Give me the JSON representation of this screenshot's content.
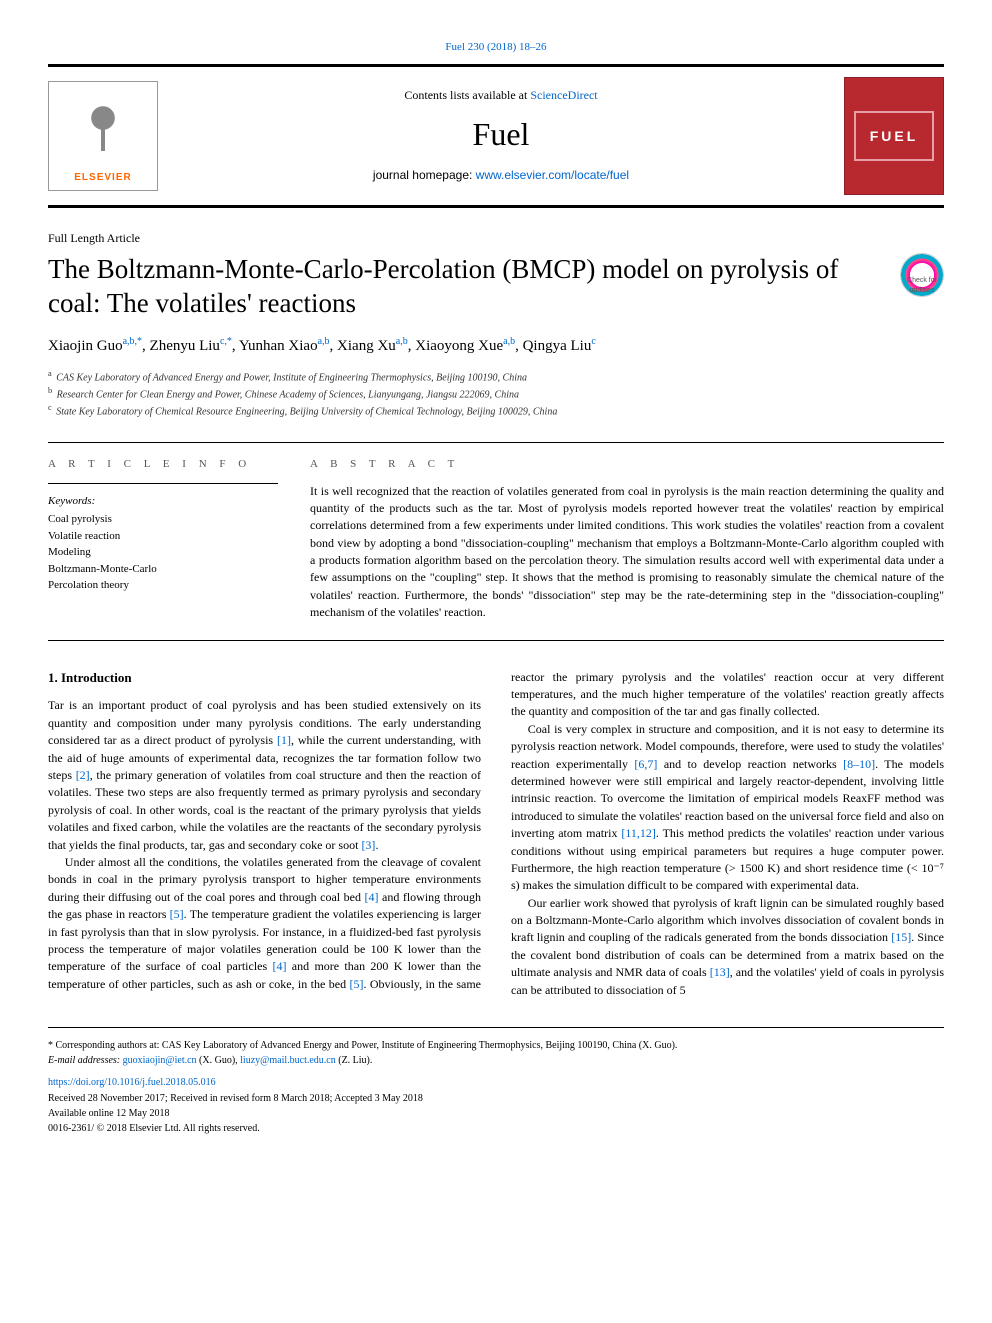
{
  "top_citation": "Fuel 230 (2018) 18–26",
  "header": {
    "contents_prefix": "Contents lists available at ",
    "contents_link": "ScienceDirect",
    "journal_name": "Fuel",
    "homepage_prefix": "journal homepage: ",
    "homepage_url": "www.elsevier.com/locate/fuel",
    "elsevier_brand": "ELSEVIER",
    "cover_text": "FUEL"
  },
  "article_type": "Full Length Article",
  "title": "The Boltzmann-Monte-Carlo-Percolation (BMCP) model on pyrolysis of coal: The volatiles' reactions",
  "check_updates_label": "Check for updates",
  "authors_html": "Xiaojin Guo<sup>a,b,*</sup>, Zhenyu Liu<sup>c,*</sup>, Yunhan Xiao<sup>a,b</sup>, Xiang Xu<sup>a,b</sup>, Xiaoyong Xue<sup>a,b</sup>, Qingya Liu<sup>c</sup>",
  "affiliations": [
    {
      "key": "a",
      "text": "CAS Key Laboratory of Advanced Energy and Power, Institute of Engineering Thermophysics, Beijing 100190, China"
    },
    {
      "key": "b",
      "text": "Research Center for Clean Energy and Power, Chinese Academy of Sciences, Lianyungang, Jiangsu 222069, China"
    },
    {
      "key": "c",
      "text": "State Key Laboratory of Chemical Resource Engineering, Beijing University of Chemical Technology, Beijing 100029, China"
    }
  ],
  "info": {
    "label": "A R T I C L E  I N F O",
    "keywords_head": "Keywords:",
    "keywords": [
      "Coal pyrolysis",
      "Volatile reaction",
      "Modeling",
      "Boltzmann-Monte-Carlo",
      "Percolation theory"
    ]
  },
  "abstract": {
    "label": "A B S T R A C T",
    "text": "It is well recognized that the reaction of volatiles generated from coal in pyrolysis is the main reaction determining the quality and quantity of the products such as the tar. Most of pyrolysis models reported however treat the volatiles' reaction by empirical correlations determined from a few experiments under limited conditions. This work studies the volatiles' reaction from a covalent bond view by adopting a bond \"dissociation-coupling\" mechanism that employs a Boltzmann-Monte-Carlo algorithm coupled with a products formation algorithm based on the percolation theory. The simulation results accord well with experimental data under a few assumptions on the \"coupling\" step. It shows that the method is promising to reasonably simulate the chemical nature of the volatiles' reaction. Furthermore, the bonds' \"dissociation\" step may be the rate-determining step in the \"dissociation-coupling\" mechanism of the volatiles' reaction."
  },
  "section1_heading": "1. Introduction",
  "paragraphs": [
    "Tar is an important product of coal pyrolysis and has been studied extensively on its quantity and composition under many pyrolysis conditions. The early understanding considered tar as a direct product of pyrolysis [1], while the current understanding, with the aid of huge amounts of experimental data, recognizes the tar formation follow two steps [2], the primary generation of volatiles from coal structure and then the reaction of volatiles. These two steps are also frequently termed as primary pyrolysis and secondary pyrolysis of coal. In other words, coal is the reactant of the primary pyrolysis that yields volatiles and fixed carbon, while the volatiles are the reactants of the secondary pyrolysis that yields the final products, tar, gas and secondary coke or soot [3].",
    "Under almost all the conditions, the volatiles generated from the cleavage of covalent bonds in coal in the primary pyrolysis transport to higher temperature environments during their diffusing out of the coal pores and through coal bed [4] and flowing through the gas phase in reactors [5]. The temperature gradient the volatiles experiencing is larger in fast pyrolysis than that in slow pyrolysis. For instance, in a fluidized-bed fast pyrolysis process the temperature of major volatiles generation could be 100 K lower than the temperature of the surface of coal particles [4] and more than 200 K lower than the temperature of other particles, such as ash or coke, in the bed [5]. Obviously, in the same reactor the primary pyrolysis and the volatiles' reaction occur at very different temperatures, and the much higher temperature of the volatiles' reaction greatly affects the quantity and composition of the tar and gas finally collected.",
    "Coal is very complex in structure and composition, and it is not easy to determine its pyrolysis reaction network. Model compounds, therefore, were used to study the volatiles' reaction experimentally [6,7] and to develop reaction networks [8–10]. The models determined however were still empirical and largely reactor-dependent, involving little intrinsic reaction. To overcome the limitation of empirical models ReaxFF method was introduced to simulate the volatiles' reaction based on the universal force field and also on inverting atom matrix [11,12]. This method predicts the volatiles' reaction under various conditions without using empirical parameters but requires a huge computer power. Furthermore, the high reaction temperature (> 1500 K) and short residence time (< 10⁻⁷ s) makes the simulation difficult to be compared with experimental data.",
    "Our earlier work showed that pyrolysis of kraft lignin can be simulated roughly based on a Boltzmann-Monte-Carlo algorithm which involves dissociation of covalent bonds in kraft lignin and coupling of the radicals generated from the bonds dissociation [15]. Since the covalent bond distribution of coals can be determined from a matrix based on the ultimate analysis and NMR data of coals [13], and the volatiles' yield of coals in pyrolysis can be attributed to dissociation of 5"
  ],
  "footnote": {
    "corresponding": "* Corresponding authors at: CAS Key Laboratory of Advanced Energy and Power, Institute of Engineering Thermophysics, Beijing 100190, China (X. Guo).",
    "email_label": "E-mail addresses: ",
    "email1": "guoxiaojin@iet.cn",
    "email1_who": " (X. Guo), ",
    "email2": "liuzy@mail.buct.edu.cn",
    "email2_who": " (Z. Liu)."
  },
  "doi": "https://doi.org/10.1016/j.fuel.2018.05.016",
  "history": [
    "Received 28 November 2017; Received in revised form 8 March 2018; Accepted 3 May 2018",
    "Available online 12 May 2018",
    "0016-2361/ © 2018 Elsevier Ltd. All rights reserved."
  ],
  "refs": [
    "[1]",
    "[2]",
    "[3]",
    "[4]",
    "[5]",
    "[6,7]",
    "[8–10]",
    "[11,12]",
    "[15]",
    "[13]"
  ],
  "colors": {
    "link": "#0066cc",
    "cover_bg": "#b8292f",
    "elsevier_orange": "#ff6600",
    "rule": "#000000"
  }
}
